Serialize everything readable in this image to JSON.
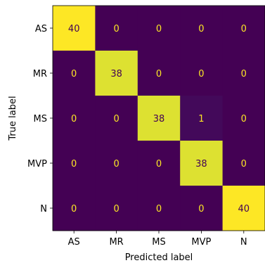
{
  "chart_data": {
    "type": "heatmap",
    "title": "",
    "xlabel": "Predicted label",
    "ylabel": "True label",
    "x_categories": [
      "AS",
      "MR",
      "MS",
      "MVP",
      "N"
    ],
    "y_categories": [
      "AS",
      "MR",
      "MS",
      "MVP",
      "N"
    ],
    "values": [
      [
        40,
        0,
        0,
        0,
        0
      ],
      [
        0,
        38,
        0,
        0,
        0
      ],
      [
        0,
        0,
        38,
        1,
        0
      ],
      [
        0,
        0,
        0,
        38,
        0
      ],
      [
        0,
        0,
        0,
        0,
        40
      ]
    ],
    "colormap": "viridis",
    "vmin": 0,
    "vmax": 40,
    "colors": {
      "low": "#440154",
      "high": "#fde725",
      "text_on_low": "#fde725",
      "text_on_high": "#440154"
    }
  }
}
